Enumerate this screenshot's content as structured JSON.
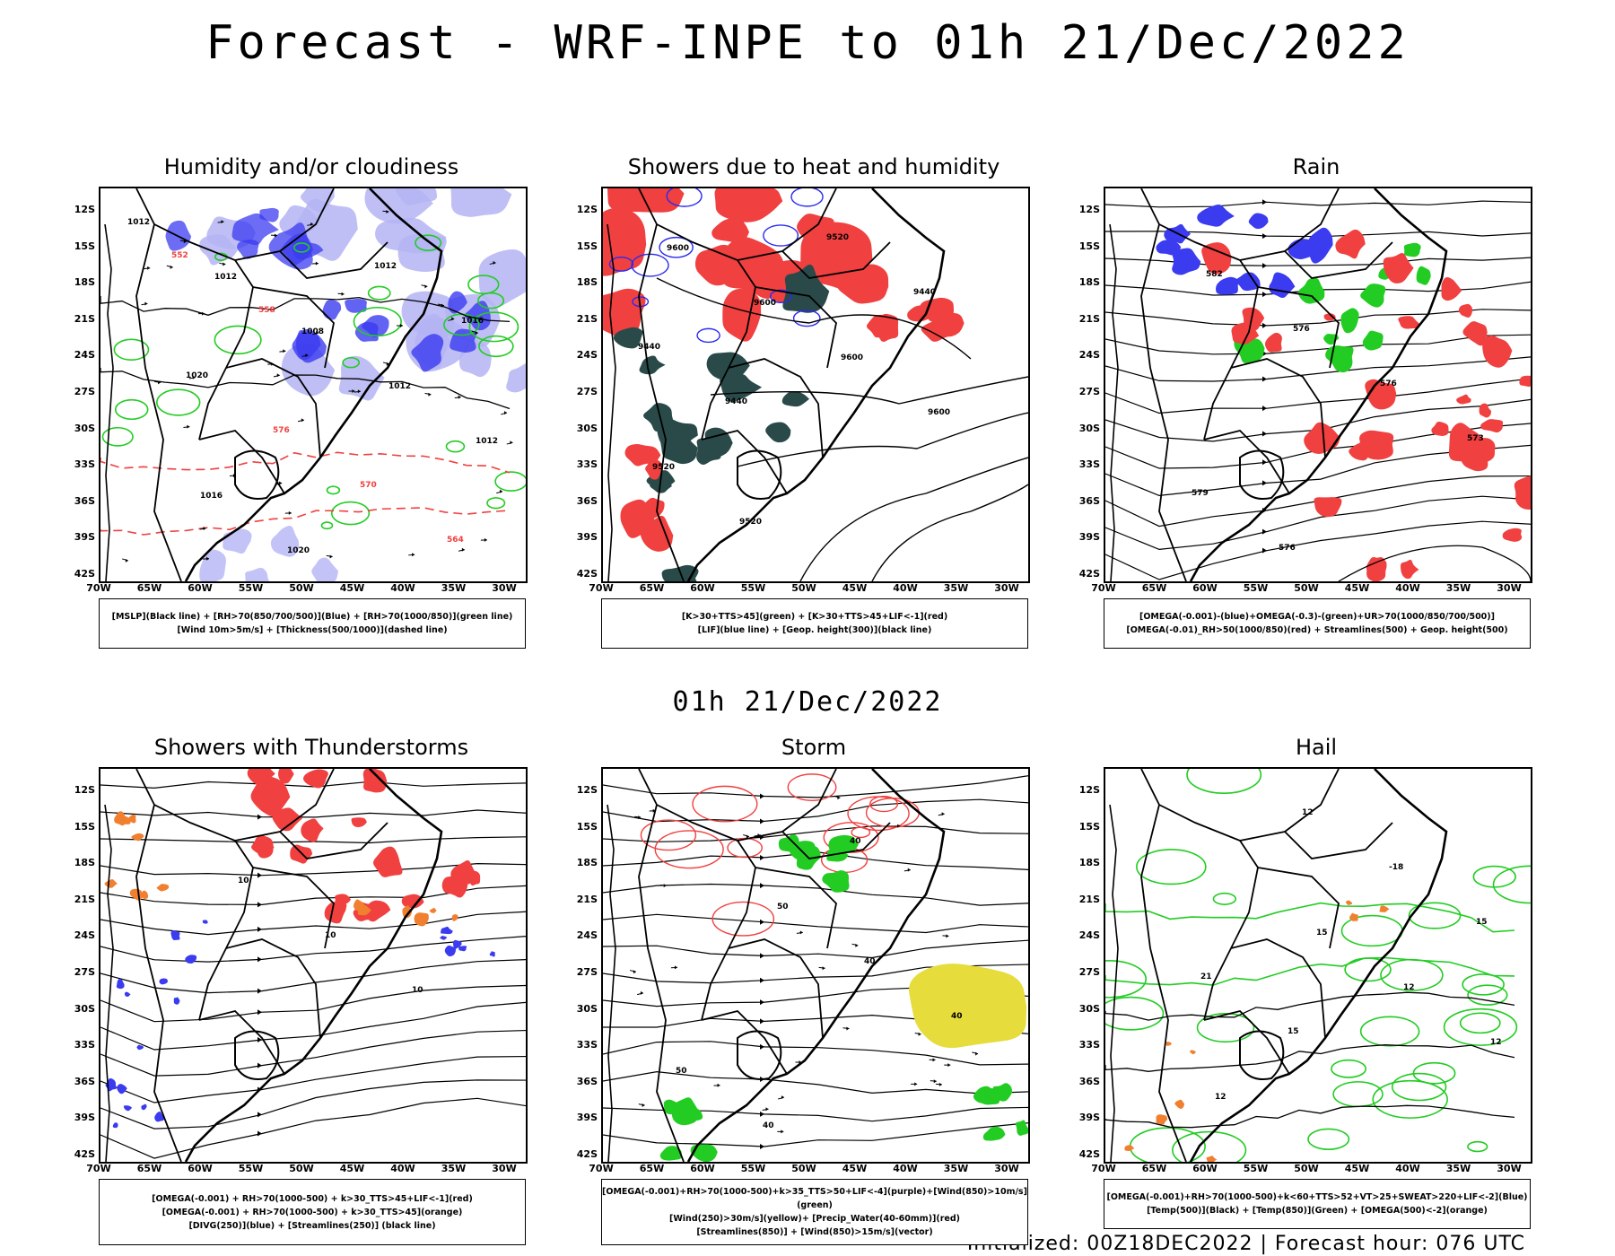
{
  "title": "Forecast - WRF-INPE to 01h 21/Dec/2022",
  "mid_title": "01h 21/Dec/2022",
  "footer": "Initialized: 00Z18DEC2022 | Forecast hour: 076 UTC",
  "lat_labels": [
    "12S",
    "15S",
    "18S",
    "21S",
    "24S",
    "27S",
    "30S",
    "33S",
    "36S",
    "39S",
    "42S"
  ],
  "lon_labels": [
    "70W",
    "65W",
    "60W",
    "55W",
    "50W",
    "45W",
    "40W",
    "35W",
    "30W"
  ],
  "colors": {
    "blue": "#3b3bf0",
    "lightblue": "#b4b4f5",
    "green": "#22cc22",
    "red": "#f04040",
    "teal": "#2a4a4a",
    "orange": "#f08030",
    "yellow": "#e6dc3c",
    "black": "#000000"
  },
  "panels": [
    {
      "title": "Humidity and/or cloudiness",
      "legend": [
        "[MSLP](Black line) + [RH>70(850/700/500)](Blue) + [RH>70(1000/850)](green line)",
        "[Wind 10m>5m/s] + [Thickness(500/1000)](dashed line)"
      ],
      "contour_labels": [
        "1012",
        "1012",
        "1008",
        "1012",
        "1012",
        "1016",
        "1020",
        "1012",
        "1016",
        "1020",
        "576",
        "570",
        "564",
        "552",
        "558"
      ]
    },
    {
      "title": "Showers due to heat and humidity",
      "legend": [
        "[K>30+TTS>45](green) + [K>30+TTS>45+LIF<-1](red)",
        "[LIF](blue line) + [Geop. height(300)](black line)"
      ],
      "contour_labels": [
        "9600",
        "9600",
        "9600",
        "9600",
        "9520",
        "9520",
        "9520",
        "9440",
        "9440",
        "9440"
      ]
    },
    {
      "title": "Rain",
      "legend": [
        "[OMEGA(-0.001)-(blue)+OMEGA(-0.3)-(green)+UR>70(1000/850/700/500)]",
        "[OMEGA(-0.01)_RH>50(1000/850)(red) + Streamlines(500) + Geop. height(500)"
      ],
      "contour_labels": [
        "582",
        "576",
        "576",
        "573",
        "579",
        "576"
      ]
    },
    {
      "title": "Showers with Thunderstorms",
      "legend": [
        "[OMEGA(-0.001) + RH>70(1000-500) + k>30_TTS>45+LIF<-1](red)",
        "[OMEGA(-0.001) + RH>70(1000-500) + k>30_TTS>45](orange)",
        "[DIVG(250)](blue) + [Streamlines(250)] (black line)"
      ],
      "contour_labels": [
        "10",
        "10",
        "10"
      ]
    },
    {
      "title": "Storm",
      "legend": [
        "[OMEGA(-0.001)+RH>70(1000-500)+k>35_TTS>50+LIF<-4](purple)+[Wind(850)>10m/s](green)",
        "[Wind(250)>30m/s](yellow)+ [Precip_Water(40-60mm)](red)",
        "[Streamlines(850)] + [Wind(850)>15m/s](vector)"
      ],
      "contour_labels": [
        "50",
        "40",
        "40",
        "50",
        "40",
        "40"
      ]
    },
    {
      "title": "Hail",
      "legend": [
        "[OMEGA(-0.001)+RH>70(1000-500)+k<60+TTS>52+VT>25+SWEAT>220+LIF<-2](Blue)",
        "[Temp(500)](Black) + [Temp(850)](Green) + [OMEGA(500)<-2](orange)"
      ],
      "contour_labels": [
        "15",
        "12",
        "12",
        "12",
        "12",
        "-18",
        "15",
        "21",
        "15"
      ]
    }
  ]
}
